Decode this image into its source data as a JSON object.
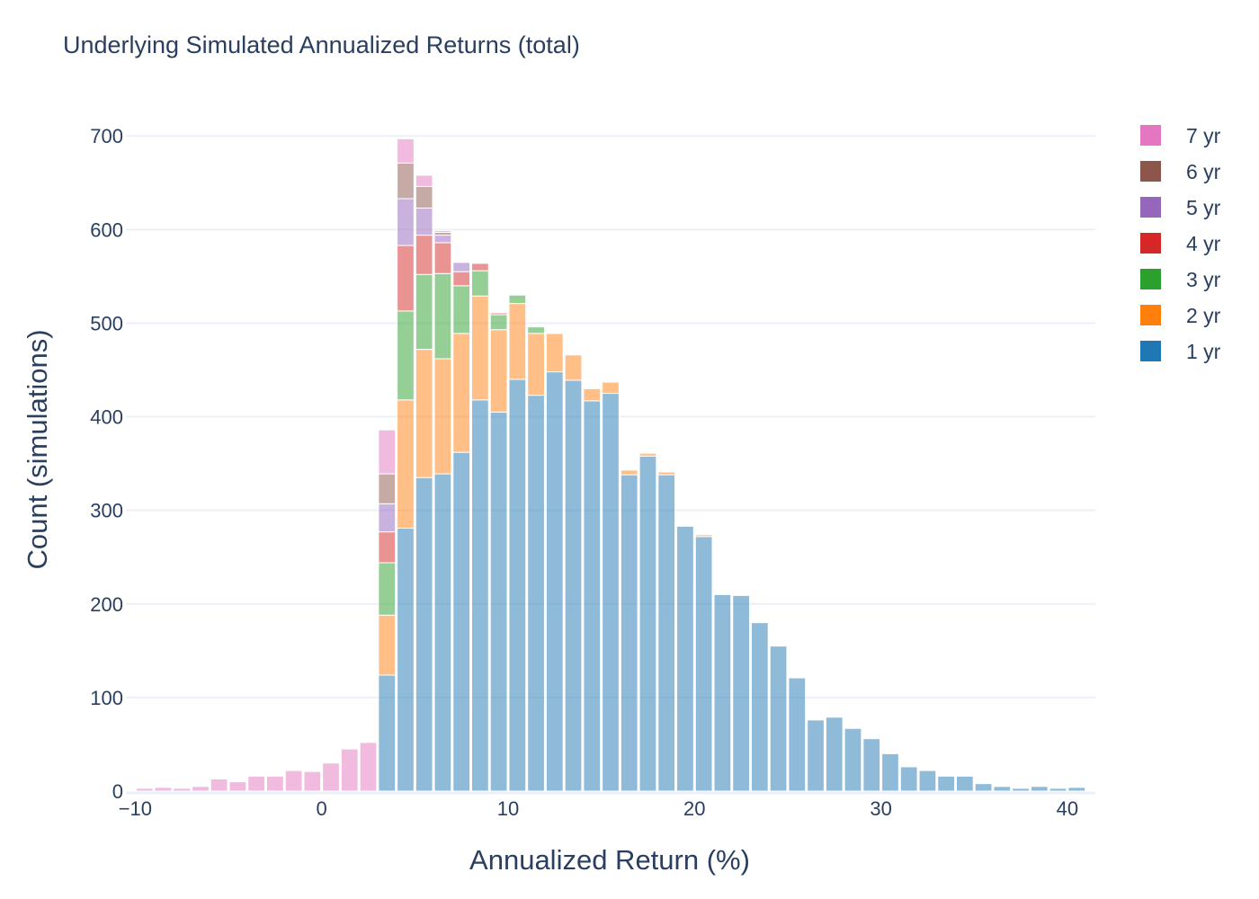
{
  "chart_data": {
    "type": "bar",
    "stacked": true,
    "title": "Underlying Simulated Annualized Returns (total)",
    "xlabel": "Annualized Return (%)",
    "ylabel": "Count (simulations)",
    "xlim": [
      -10.5,
      41.5
    ],
    "ylim": [
      0,
      730
    ],
    "xticks": [
      -10,
      0,
      10,
      20,
      30,
      40
    ],
    "xtick_labels": [
      "−10",
      "0",
      "10",
      "20",
      "30",
      "40"
    ],
    "yticks": [
      0,
      100,
      200,
      300,
      400,
      500,
      600,
      700
    ],
    "grid": true,
    "legend_position": "top-right",
    "bin_width": 1,
    "x": [
      -9.5,
      -8.5,
      -7.5,
      -6.5,
      -5.5,
      -4.5,
      -3.5,
      -2.5,
      -1.5,
      -0.5,
      0.5,
      1.5,
      2.5,
      3.5,
      4.5,
      5.5,
      6.5,
      7.5,
      8.5,
      9.5,
      10.5,
      11.5,
      12.5,
      13.5,
      14.5,
      15.5,
      16.5,
      17.5,
      18.5,
      19.5,
      20.5,
      21.5,
      22.5,
      23.5,
      24.5,
      25.5,
      26.5,
      27.5,
      28.5,
      29.5,
      30.5,
      31.5,
      32.5,
      33.5,
      34.5,
      35.5,
      36.5,
      37.5,
      38.5,
      39.5,
      40.5
    ],
    "series": [
      {
        "name": "1 yr",
        "color": "#1f77b4",
        "values": [
          0,
          0,
          0,
          0,
          0,
          0,
          0,
          0,
          0,
          0,
          0,
          0,
          0,
          124,
          281,
          335,
          339,
          362,
          418,
          405,
          440,
          423,
          448,
          439,
          417,
          425,
          338,
          358,
          338,
          283,
          272,
          210,
          209,
          180,
          155,
          121,
          76,
          79,
          67,
          56,
          40,
          26,
          22,
          16,
          16,
          8,
          5,
          3,
          5,
          3,
          4
        ]
      },
      {
        "name": "2 yr",
        "color": "#ff7f0e",
        "values": [
          0,
          0,
          0,
          0,
          0,
          0,
          0,
          0,
          0,
          0,
          0,
          0,
          0,
          64,
          137,
          137,
          123,
          127,
          111,
          88,
          81,
          66,
          41,
          27,
          13,
          12,
          5,
          3,
          3,
          0,
          2,
          0,
          0,
          0,
          0,
          0,
          0,
          0,
          0,
          0,
          0,
          0,
          0,
          0,
          0,
          0,
          0,
          0,
          0,
          0,
          0
        ]
      },
      {
        "name": "3 yr",
        "color": "#2ca02c",
        "values": [
          0,
          0,
          0,
          0,
          0,
          0,
          0,
          0,
          0,
          0,
          0,
          0,
          0,
          56,
          95,
          80,
          91,
          51,
          27,
          16,
          9,
          7,
          1,
          0,
          0,
          0,
          0,
          0,
          0,
          0,
          0,
          0,
          0,
          0,
          0,
          0,
          0,
          0,
          0,
          0,
          0,
          0,
          0,
          0,
          0,
          0,
          0,
          0,
          0,
          0,
          0
        ]
      },
      {
        "name": "4 yr",
        "color": "#d62728",
        "values": [
          0,
          0,
          0,
          0,
          0,
          0,
          0,
          0,
          0,
          0,
          0,
          0,
          0,
          33,
          70,
          42,
          33,
          15,
          8,
          2,
          0,
          0,
          0,
          0,
          0,
          0,
          0,
          0,
          0,
          0,
          0,
          0,
          0,
          0,
          0,
          0,
          0,
          0,
          0,
          0,
          0,
          0,
          0,
          0,
          0,
          0,
          0,
          0,
          0,
          0,
          0
        ]
      },
      {
        "name": "5 yr",
        "color": "#9467bd",
        "values": [
          0,
          0,
          0,
          0,
          0,
          0,
          0,
          0,
          0,
          0,
          0,
          0,
          0,
          30,
          50,
          29,
          8,
          10,
          1,
          0,
          0,
          0,
          0,
          0,
          0,
          0,
          0,
          0,
          0,
          0,
          0,
          0,
          0,
          0,
          0,
          0,
          0,
          0,
          0,
          0,
          0,
          0,
          0,
          0,
          0,
          0,
          0,
          0,
          0,
          0,
          0
        ]
      },
      {
        "name": "6 yr",
        "color": "#8c564b",
        "values": [
          0,
          0,
          0,
          0,
          0,
          0,
          0,
          0,
          0,
          0,
          0,
          0,
          0,
          32,
          38,
          23,
          3,
          1,
          0,
          0,
          0,
          0,
          0,
          0,
          0,
          0,
          0,
          0,
          0,
          0,
          0,
          0,
          0,
          0,
          0,
          0,
          0,
          0,
          0,
          0,
          0,
          0,
          0,
          0,
          0,
          0,
          0,
          0,
          0,
          0,
          0
        ]
      },
      {
        "name": "7 yr",
        "color": "#e377c2",
        "values": [
          3,
          4,
          3,
          5,
          13,
          10,
          16,
          16,
          22,
          21,
          30,
          45,
          52,
          47,
          26,
          12,
          2,
          1,
          0,
          0,
          0,
          0,
          0,
          0,
          0,
          0,
          0,
          0,
          0,
          0,
          0,
          0,
          0,
          0,
          0,
          0,
          0,
          0,
          0,
          0,
          0,
          0,
          0,
          0,
          0,
          0,
          0,
          0,
          0,
          0,
          0
        ]
      }
    ],
    "legend_order": [
      "7 yr",
      "6 yr",
      "5 yr",
      "4 yr",
      "3 yr",
      "2 yr",
      "1 yr"
    ],
    "bar_opacity": 0.5
  }
}
